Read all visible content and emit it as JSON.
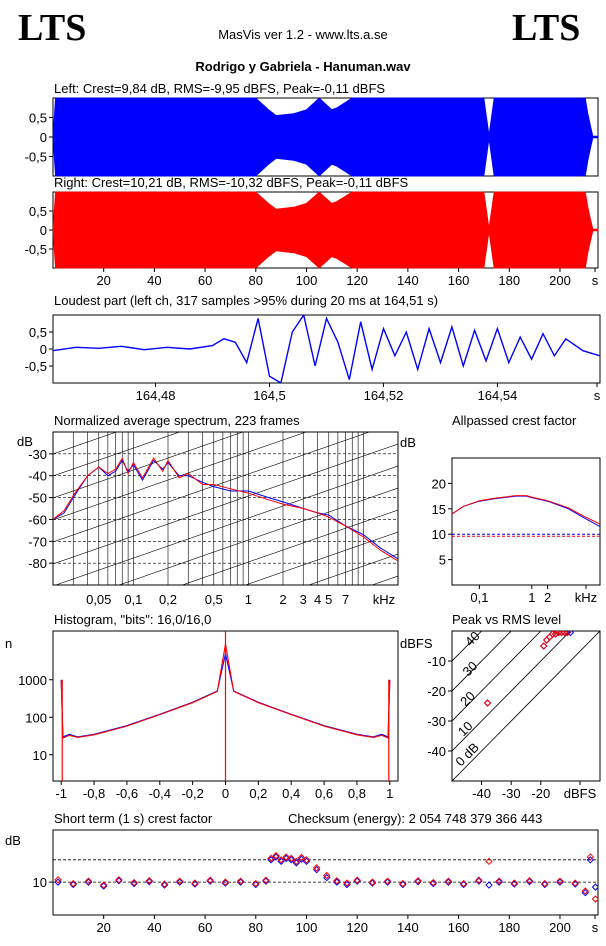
{
  "header": {
    "logo_left": "LTS",
    "logo_right": "LTS",
    "app_title": "MasVis ver 1.2 - www.lts.a.se",
    "file_title": "Rodrigo y Gabriela - Hanuman.wav"
  },
  "colors": {
    "left_channel": "#0000ff",
    "right_channel": "#ff0000",
    "axis": "#000000"
  },
  "panels": {
    "left_title": "Left: Crest=9,84 dB, RMS=-9,95 dBFS, Peak=-0,11 dBFS",
    "right_title": "Right: Crest=10,21 dB, RMS=-10,32 dBFS, Peak=-0,11 dBFS",
    "loudest_title": "Loudest part (left  ch, 317 samples >95% during 20 ms at 164,51 s)",
    "spectrum_title": "Normalized average spectrum, 223 frames",
    "allpass_title": "Allpassed crest factor",
    "histogram_title": "Histogram, \"bits\": 16,0/16,0",
    "peakrms_title": "Peak vs RMS level",
    "shortterm_title": "Short term (1 s) crest factor",
    "checksum": "Checksum (energy):  2 054 748 379 366 443"
  },
  "chart_data": [
    {
      "id": "waveform-left",
      "type": "area",
      "title": "Left: Crest=9,84 dB, RMS=-9,95 dBFS, Peak=-0,11 dBFS",
      "xlim": [
        0,
        215
      ],
      "ylim": [
        -1,
        1
      ],
      "yticks": [
        "0,5",
        "0",
        "-0,5"
      ],
      "x": [
        0,
        1,
        3,
        60,
        70,
        80,
        85,
        88,
        95,
        100,
        105,
        110,
        112,
        118,
        125,
        170,
        172,
        174,
        200,
        210,
        211,
        212,
        213,
        215
      ],
      "envelope": [
        0,
        1,
        1,
        1,
        1,
        1,
        0.7,
        0.55,
        0.6,
        0.7,
        1,
        0.7,
        0.75,
        1,
        1,
        1,
        0.05,
        1,
        1,
        1,
        0.6,
        0.3,
        0.02,
        0.02
      ]
    },
    {
      "id": "waveform-right",
      "type": "area",
      "title": "Right: Crest=10,21 dB, RMS=-10,32 dBFS, Peak=-0,11 dBFS",
      "xlim": [
        0,
        215
      ],
      "ylim": [
        -1,
        1
      ],
      "yticks": [
        "0,5",
        "0",
        "-0,5"
      ],
      "xticks": [
        "20",
        "40",
        "60",
        "80",
        "100",
        "120",
        "140",
        "160",
        "180",
        "200",
        "s"
      ],
      "x": [
        0,
        1,
        3,
        60,
        70,
        80,
        85,
        88,
        95,
        100,
        105,
        110,
        112,
        118,
        125,
        170,
        172,
        174,
        200,
        210,
        211,
        212,
        213,
        215
      ],
      "envelope": [
        0,
        1,
        1,
        1,
        1,
        1,
        0.7,
        0.55,
        0.6,
        0.7,
        1,
        0.7,
        0.75,
        1,
        1,
        1,
        0.05,
        1,
        1,
        1,
        0.6,
        0.3,
        0.02,
        0.02
      ]
    },
    {
      "id": "loudest-part",
      "type": "line",
      "title": "Loudest part (left  ch, 317 samples >95% during 20 ms at 164,51 s)",
      "xlim": [
        164.462,
        164.558
      ],
      "ylim": [
        -1,
        1
      ],
      "yticks": [
        "0,5",
        "0",
        "-0,5"
      ],
      "xticks": [
        "164,48",
        "164,5",
        "164,52",
        "164,54",
        "s"
      ],
      "x": [
        164.462,
        164.466,
        164.47,
        164.474,
        164.478,
        164.482,
        164.486,
        164.49,
        164.492,
        164.494,
        164.496,
        164.498,
        164.5,
        164.502,
        164.504,
        164.506,
        164.508,
        164.51,
        164.512,
        164.514,
        164.516,
        164.518,
        164.52,
        164.522,
        164.524,
        164.526,
        164.528,
        164.53,
        164.532,
        164.534,
        164.536,
        164.538,
        164.54,
        164.542,
        164.544,
        164.546,
        164.548,
        164.55,
        164.552,
        164.555,
        164.558
      ],
      "values": [
        -0.05,
        0.05,
        0.02,
        0.08,
        -0.02,
        0.05,
        0.0,
        0.1,
        0.3,
        0.2,
        -0.4,
        0.9,
        -0.8,
        -1.0,
        0.5,
        1.0,
        -0.5,
        0.9,
        0.2,
        -0.9,
        0.8,
        -0.6,
        0.6,
        -0.2,
        0.5,
        -0.6,
        0.6,
        -0.4,
        0.65,
        -0.5,
        0.55,
        -0.35,
        0.6,
        -0.4,
        0.35,
        -0.3,
        0.45,
        -0.2,
        0.3,
        -0.05,
        -0.2
      ]
    },
    {
      "id": "spectrum",
      "type": "line",
      "title": "Normalized average spectrum, 223 frames",
      "ylabel": "dB",
      "xlabel": "kHz",
      "x_scale": "log",
      "xlim": [
        0.02,
        20
      ],
      "ylim": [
        -90,
        -20
      ],
      "yticks": [
        "-30",
        "-40",
        "-50",
        "-60",
        "-70",
        "-80"
      ],
      "xticks": [
        "0,05",
        "0,1",
        "0,2",
        "0,5",
        "1",
        "2",
        "3",
        "4",
        "5",
        "7",
        "kHz"
      ],
      "x": [
        0.02,
        0.025,
        0.03,
        0.04,
        0.05,
        0.06,
        0.07,
        0.08,
        0.09,
        0.1,
        0.12,
        0.15,
        0.18,
        0.2,
        0.25,
        0.3,
        0.4,
        0.5,
        0.7,
        1,
        1.5,
        2,
        3,
        4,
        5,
        7,
        10,
        14,
        20
      ],
      "series": [
        {
          "values": [
            -60,
            -57,
            -50,
            -40,
            -36,
            -40,
            -38,
            -33,
            -38,
            -35,
            -42,
            -33,
            -37,
            -34,
            -40,
            -40,
            -43,
            -45,
            -47,
            -47,
            -50,
            -52,
            -55,
            -57,
            -58,
            -63,
            -67,
            -73,
            -78
          ]
        },
        {
          "values": [
            -60,
            -56,
            -49,
            -40,
            -36,
            -39,
            -37,
            -32,
            -39,
            -34,
            -41,
            -32,
            -38,
            -33,
            -41,
            -39,
            -44,
            -44,
            -46,
            -48,
            -51,
            -53,
            -55,
            -57,
            -59,
            -63,
            -68,
            -74,
            -79
          ]
        }
      ]
    },
    {
      "id": "allpass-crest",
      "type": "line",
      "title": "Allpassed crest factor",
      "ylabel": "dB",
      "xlabel": "kHz",
      "x_scale": "log",
      "xlim": [
        0.03,
        20
      ],
      "ylim": [
        0,
        25
      ],
      "yticks": [
        "20",
        "15",
        "10",
        "5"
      ],
      "xticks": [
        "0,1",
        "1",
        "2",
        "kHz"
      ],
      "x": [
        0.03,
        0.05,
        0.1,
        0.2,
        0.5,
        0.8,
        1,
        2,
        5,
        10,
        20
      ],
      "series": [
        {
          "values": [
            14,
            15.5,
            16.5,
            17,
            17.5,
            17.5,
            17.2,
            16.5,
            15,
            13.2,
            11.5
          ]
        },
        {
          "values": [
            14,
            15.5,
            16.6,
            17.1,
            17.6,
            17.6,
            17.3,
            16.6,
            15.2,
            13.5,
            12
          ]
        }
      ]
    },
    {
      "id": "histogram",
      "type": "line",
      "title": "Histogram, \"bits\": 16,0/16,0",
      "ylabel": "n",
      "y_scale": "log",
      "xlim": [
        -1.05,
        1.05
      ],
      "yticks": [
        "1000",
        "100",
        "10"
      ],
      "xticks": [
        "-1",
        "-0,8",
        "-0,6",
        "-0,4",
        "-0,2",
        "0",
        "0,2",
        "0,4",
        "0,6",
        "0,8",
        "1"
      ],
      "x": [
        -1.0,
        -0.99,
        -0.95,
        -0.9,
        -0.8,
        -0.6,
        -0.4,
        -0.2,
        -0.05,
        0.0,
        0.05,
        0.2,
        0.4,
        0.6,
        0.8,
        0.9,
        0.95,
        0.99,
        1.0
      ],
      "series": [
        {
          "values": [
            1000,
            30,
            35,
            30,
            35,
            60,
            120,
            250,
            500,
            5000,
            500,
            250,
            120,
            60,
            35,
            30,
            35,
            30,
            1000
          ]
        },
        {
          "values": [
            900,
            28,
            33,
            29,
            34,
            58,
            118,
            245,
            490,
            9000,
            490,
            245,
            118,
            58,
            34,
            29,
            33,
            28,
            900
          ]
        }
      ]
    },
    {
      "id": "peak-vs-rms",
      "type": "scatter",
      "title": "Peak vs RMS level",
      "ylabel": "dBFS",
      "xlabel": "dBFS",
      "xlim": [
        -50,
        0
      ],
      "ylim": [
        -50,
        0
      ],
      "yticks": [
        "-10",
        "-20",
        "-30",
        "-40"
      ],
      "xticks": [
        "-40",
        "-30",
        "-20",
        "dBFS"
      ],
      "diagonal_labels": [
        "40",
        "30",
        "20",
        "10",
        "0 dB"
      ],
      "series": [
        {
          "x": [
            -38,
            -19,
            -18,
            -17,
            -16,
            -15,
            -14,
            -13,
            -12,
            -11,
            -10
          ],
          "y": [
            -24,
            -5,
            -3,
            -2,
            -1,
            -1,
            -0.5,
            -0.5,
            -0.5,
            -0.5,
            -0.5
          ]
        },
        {
          "x": [
            -38,
            -19,
            -18,
            -17,
            -16,
            -15,
            -14,
            -13,
            -12,
            -11
          ],
          "y": [
            -24,
            -5,
            -3,
            -2,
            -1,
            -1,
            -0.5,
            -0.5,
            -0.5,
            -0.5
          ]
        }
      ]
    },
    {
      "id": "short-term-crest",
      "type": "scatter",
      "title": "Short term (1 s) crest factor",
      "ylabel": "dB",
      "y_scale": "log",
      "xlim": [
        0,
        215
      ],
      "ylim": [
        5,
        30
      ],
      "yticks": [
        "10"
      ],
      "xticks": [
        "20",
        "40",
        "60",
        "80",
        "100",
        "120",
        "140",
        "160",
        "180",
        "200",
        "s"
      ],
      "x": [
        2,
        8,
        14,
        20,
        26,
        32,
        38,
        44,
        50,
        56,
        62,
        68,
        74,
        80,
        84,
        86,
        88,
        90,
        92,
        94,
        96,
        98,
        100,
        104,
        108,
        112,
        116,
        120,
        126,
        132,
        138,
        144,
        150,
        156,
        162,
        168,
        172,
        176,
        182,
        188,
        194,
        200,
        206,
        210,
        212,
        214
      ],
      "series": [
        {
          "values": [
            10,
            9.5,
            10,
            9.2,
            10.3,
            9.7,
            10.1,
            9.4,
            10,
            9.6,
            10.2,
            9.8,
            10,
            9.5,
            10.2,
            16,
            17,
            15.5,
            16.5,
            16,
            15,
            16.2,
            15.5,
            13,
            11,
            10,
            9.5,
            10.2,
            9.8,
            10,
            9.5,
            10.1,
            9.7,
            10,
            9.5,
            10.2,
            9.4,
            10,
            9.6,
            10.1,
            9.5,
            10,
            9.6,
            8,
            16,
            9
          ]
        },
        {
          "values": [
            10.5,
            9.7,
            10.2,
            9.4,
            10.5,
            9.9,
            10.3,
            9.6,
            10.2,
            9.8,
            10.4,
            10,
            10.2,
            9.7,
            10.4,
            16.5,
            17.5,
            16,
            17,
            16.5,
            15.5,
            16.8,
            16,
            13.5,
            11.5,
            10.3,
            9.8,
            10.4,
            10,
            10.2,
            9.7,
            10.3,
            9.9,
            10.2,
            9.7,
            10.4,
            15.5,
            10.2,
            9.8,
            10.3,
            9.7,
            10.2,
            9.8,
            8.3,
            17,
            7
          ]
        }
      ]
    }
  ]
}
